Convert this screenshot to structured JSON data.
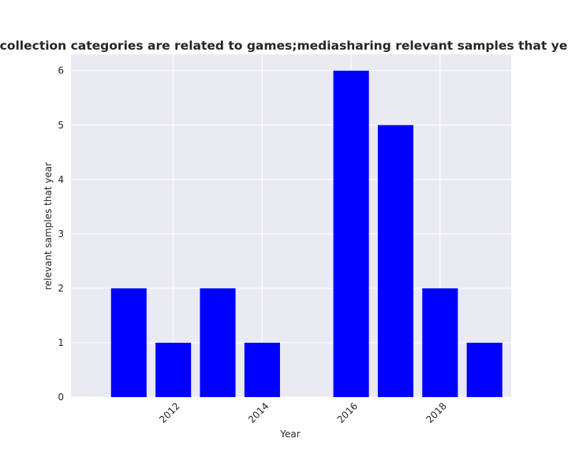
{
  "chart_data": {
    "type": "bar",
    "title": "Number of apps whose data collection categories are related to games;mediasharing relevant samples that year in privacy policies by year",
    "xlabel": "Year",
    "ylabel": "relevant samples that year",
    "x": [
      2011,
      2012,
      2013,
      2014,
      2016,
      2017,
      2018,
      2019
    ],
    "values": [
      2,
      1,
      2,
      1,
      6,
      5,
      2,
      1
    ],
    "xlim": [
      2009.7,
      2019.6
    ],
    "ylim": [
      0,
      6.3
    ],
    "xticks": [
      2012,
      2014,
      2016,
      2018
    ],
    "xtick_labels": [
      "2012",
      "2014",
      "2016",
      "2018"
    ],
    "yticks": [
      0,
      1,
      2,
      3,
      4,
      5,
      6
    ],
    "ytick_labels": [
      "0",
      "1",
      "2",
      "3",
      "4",
      "5",
      "6"
    ],
    "bar_color": "#0000ff",
    "background_color": "#eaeaf2",
    "grid": true
  }
}
